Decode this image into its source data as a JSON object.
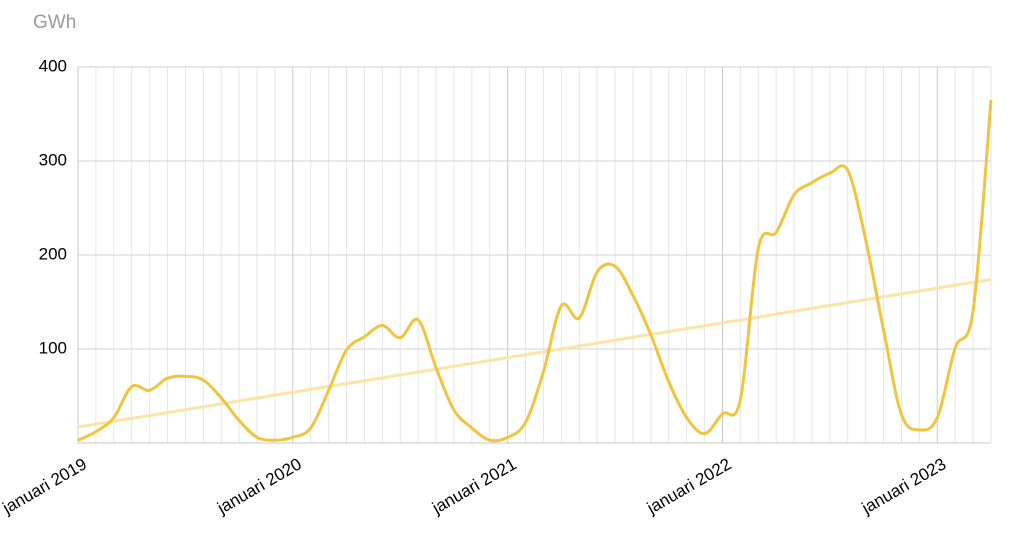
{
  "chart_data": {
    "type": "line",
    "y_label": "GWh",
    "categories": [
      "januari 2019",
      null,
      null,
      null,
      null,
      null,
      null,
      null,
      null,
      null,
      null,
      null,
      "januari 2020",
      null,
      null,
      null,
      null,
      null,
      null,
      null,
      null,
      null,
      null,
      null,
      "januari 2021",
      null,
      null,
      null,
      null,
      null,
      null,
      null,
      null,
      null,
      null,
      null,
      "januari 2022",
      null,
      null,
      null,
      null,
      null,
      null,
      null,
      null,
      null,
      null,
      null,
      "januari 2023",
      null,
      null,
      null
    ],
    "series": [
      {
        "color": "#f0c43c",
        "values": [
          3,
          12,
          27,
          60,
          56,
          69,
          71,
          67,
          48,
          24,
          6,
          3,
          6,
          16,
          56,
          99,
          113,
          125,
          112,
          131,
          80,
          35,
          16,
          3,
          6,
          22,
          76,
          146,
          133,
          182,
          188,
          157,
          115,
          65,
          27,
          10,
          31,
          46,
          207,
          224,
          264,
          277,
          287,
          290,
          216,
          120,
          30,
          14,
          27,
          101,
          141,
          365
        ]
      }
    ],
    "trendline": {
      "color": "#fbe4a6",
      "start": 17,
      "end": 174
    },
    "ylim": [
      0,
      400
    ],
    "yticks": [
      100,
      200,
      300,
      400
    ],
    "grid": true
  }
}
